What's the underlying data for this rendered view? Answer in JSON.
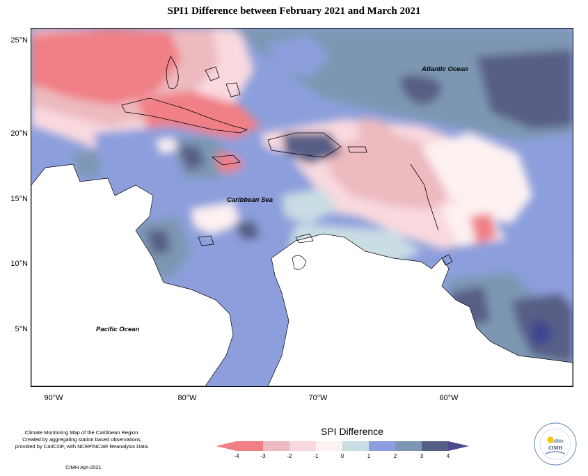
{
  "title": "SPI1 Difference between February 2021 and March 2021",
  "axes": {
    "lat_labels": [
      "25°N",
      "20°N",
      "15°N",
      "10°N",
      "5°N"
    ],
    "lon_labels": [
      "90°W",
      "80°W",
      "70°W",
      "60°W"
    ]
  },
  "ocean_labels": {
    "atlantic": "Atlantic Ocean",
    "caribbean": "Caribbean Sea",
    "pacific": "Pacific Ocean"
  },
  "legend": {
    "title": "SPI Difference",
    "tick_labels": [
      "-4",
      "-3",
      "-2",
      "-1",
      "0",
      "1",
      "2",
      "3",
      "4"
    ],
    "colors": [
      "#f07f86",
      "#ecbabf",
      "#f9d9df",
      "#fdf1f2",
      "#c9dde4",
      "#8c9fdc",
      "#7d97b2",
      "#585f86"
    ],
    "arrow_colors": [
      "#f27e86",
      "#4a4a8e"
    ]
  },
  "credits": {
    "line1": "Climate Monitoring Map of the Caribbean Region.",
    "line2": "Created by aggregating station based observations,",
    "line3": "provided by CariCOF, with NCEP/NCAR Reanalysis Data.",
    "date": "CIMH Apr-2021"
  },
  "logo": {
    "text": "CIMH"
  }
}
